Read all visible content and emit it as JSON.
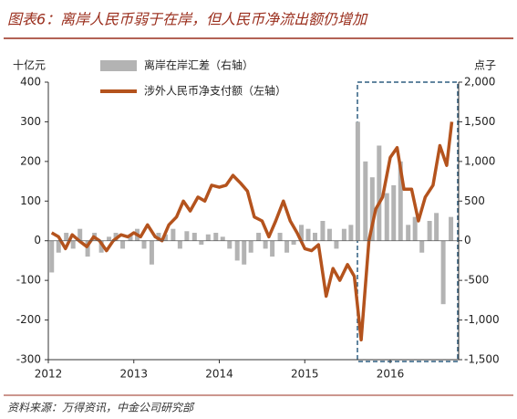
{
  "chart_data": {
    "type": "line",
    "title": "图表6：离岸人民币弱于在岸，但人民币净流出额仍增加",
    "source": "资料来源：万得资讯，中金公司研究部",
    "y_unit": "十亿元",
    "y2_unit": "点子",
    "xlim": [
      2012,
      2016.8
    ],
    "xticks": [
      2012,
      2013,
      2014,
      2015,
      2016
    ],
    "ylim": [
      -300,
      400
    ],
    "yticks": [
      -300,
      -200,
      -100,
      0,
      100,
      200,
      300,
      400
    ],
    "y2lim": [
      -1500,
      2000
    ],
    "y2ticks": [
      {
        "value": -1500,
        "label": "-1,500"
      },
      {
        "value": -1000,
        "label": "-1,000"
      },
      {
        "value": -500,
        "label": "-500"
      },
      0,
      500,
      {
        "value": 1000,
        "label": "1,000"
      },
      {
        "value": 1500,
        "label": "1,500"
      },
      {
        "value": 2000,
        "label": "2,000"
      }
    ],
    "series": [
      {
        "name": "离岸在岸汇差（右轴）",
        "type": "bar",
        "axis": "y2",
        "color": "#b3b3b3",
        "x": [
          2012.04,
          2012.12,
          2012.21,
          2012.29,
          2012.37,
          2012.46,
          2012.54,
          2012.62,
          2012.71,
          2012.79,
          2012.87,
          2012.96,
          2013.04,
          2013.12,
          2013.21,
          2013.29,
          2013.37,
          2013.46,
          2013.54,
          2013.62,
          2013.71,
          2013.79,
          2013.87,
          2013.96,
          2014.04,
          2014.12,
          2014.21,
          2014.29,
          2014.37,
          2014.46,
          2014.54,
          2014.62,
          2014.71,
          2014.79,
          2014.87,
          2014.96,
          2015.04,
          2015.12,
          2015.21,
          2015.29,
          2015.37,
          2015.46,
          2015.54,
          2015.62,
          2015.71,
          2015.79,
          2015.87,
          2015.96,
          2016.04,
          2016.12,
          2016.21,
          2016.29,
          2016.37,
          2016.46,
          2016.54,
          2016.62,
          2016.71
        ],
        "values": [
          -400,
          -150,
          100,
          -100,
          150,
          -200,
          100,
          -150,
          50,
          100,
          -100,
          80,
          150,
          -100,
          -300,
          100,
          80,
          150,
          -100,
          120,
          100,
          -50,
          80,
          100,
          50,
          -100,
          -250,
          -300,
          -150,
          100,
          -100,
          -200,
          100,
          -150,
          -50,
          200,
          150,
          100,
          250,
          150,
          -100,
          150,
          200,
          1500,
          1000,
          800,
          1200,
          600,
          700,
          1000,
          200,
          300,
          -150,
          250,
          350,
          -800,
          300
        ]
      },
      {
        "name": "涉外人民币净支付额（左轴）",
        "type": "line",
        "axis": "y",
        "color": "#b4531d",
        "x": [
          2012.04,
          2012.12,
          2012.2,
          2012.28,
          2012.36,
          2012.45,
          2012.53,
          2012.6,
          2012.68,
          2012.76,
          2012.85,
          2012.93,
          2013.0,
          2013.08,
          2013.16,
          2013.25,
          2013.33,
          2013.41,
          2013.5,
          2013.58,
          2013.66,
          2013.75,
          2013.83,
          2013.91,
          2014.0,
          2014.08,
          2014.16,
          2014.25,
          2014.33,
          2014.41,
          2014.5,
          2014.58,
          2014.66,
          2014.75,
          2014.83,
          2014.91,
          2015.0,
          2015.08,
          2015.16,
          2015.25,
          2015.33,
          2015.41,
          2015.5,
          2015.58,
          2015.66,
          2015.75,
          2015.83,
          2015.91,
          2016.0,
          2016.08,
          2016.16,
          2016.25,
          2016.33,
          2016.41,
          2016.5,
          2016.58,
          2016.66,
          2016.72
        ],
        "values": [
          20,
          10,
          -20,
          15,
          0,
          -15,
          10,
          0,
          -25,
          0,
          15,
          10,
          20,
          10,
          40,
          10,
          0,
          40,
          60,
          100,
          75,
          110,
          100,
          140,
          135,
          140,
          165,
          145,
          125,
          60,
          50,
          10,
          50,
          100,
          50,
          20,
          -20,
          -25,
          -10,
          -140,
          -70,
          -100,
          -60,
          -90,
          -250,
          0,
          80,
          110,
          210,
          235,
          130,
          130,
          50,
          110,
          140,
          240,
          190,
          300
        ]
      }
    ]
  }
}
